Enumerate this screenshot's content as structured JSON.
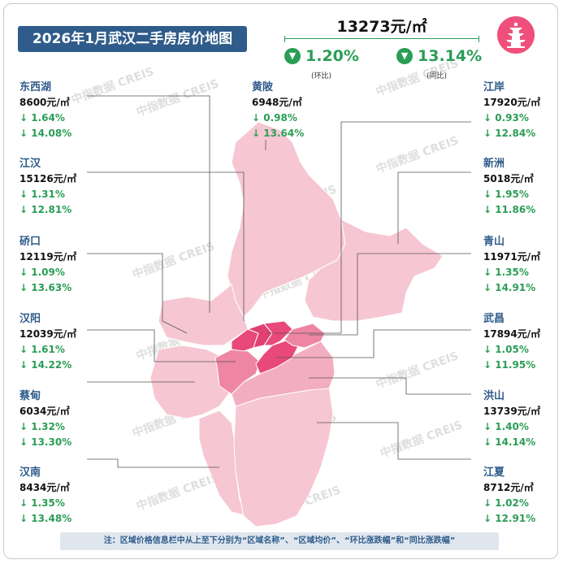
{
  "title": "2026年1月武汉二手房房价地图",
  "city_avg": "13273元/㎡",
  "mom": {
    "value": "1.20%",
    "label": "(环比)"
  },
  "yoy": {
    "value": "13.14%",
    "label": "(同比)"
  },
  "watermark": "中指数据 CREIS",
  "regions": [
    {
      "name": "东西湖",
      "price": "8600元/㎡",
      "mom": "↓ 1.64%",
      "yoy": "↓ 14.08%"
    },
    {
      "name": "江汉",
      "price": "15126元/㎡",
      "mom": "↓ 1.31%",
      "yoy": "↓ 12.81%"
    },
    {
      "name": "硚口",
      "price": "12119元/㎡",
      "mom": "↓ 1.09%",
      "yoy": "↓ 13.63%"
    },
    {
      "name": "汉阳",
      "price": "12039元/㎡",
      "mom": "↓ 1.61%",
      "yoy": "↓ 14.22%"
    },
    {
      "name": "蔡甸",
      "price": "6034元/㎡",
      "mom": "↓ 1.32%",
      "yoy": "↓ 13.30%"
    },
    {
      "name": "汉南",
      "price": "8434元/㎡",
      "mom": "↓ 1.35%",
      "yoy": "↓ 13.48%"
    },
    {
      "name": "黄陂",
      "price": "6948元/㎡",
      "mom": "↓ 0.98%",
      "yoy": "↓ 13.64%"
    },
    {
      "name": "江岸",
      "price": "17920元/㎡",
      "mom": "↓ 0.93%",
      "yoy": "↓ 12.84%"
    },
    {
      "name": "新洲",
      "price": "5018元/㎡",
      "mom": "↓ 1.95%",
      "yoy": "↓ 11.86%"
    },
    {
      "name": "青山",
      "price": "11971元/㎡",
      "mom": "↓ 1.35%",
      "yoy": "↓ 14.91%"
    },
    {
      "name": "武昌",
      "price": "17894元/㎡",
      "mom": "↓ 1.05%",
      "yoy": "↓ 11.95%"
    },
    {
      "name": "洪山",
      "price": "13739元/㎡",
      "mom": "↓ 1.40%",
      "yoy": "↓ 14.14%"
    },
    {
      "name": "江夏",
      "price": "8712元/㎡",
      "mom": "↓ 1.02%",
      "yoy": "↓ 12.91%"
    }
  ],
  "note": "注：区域价格信息栏中从上至下分别为“区域名称”、“区域均价”、“环比涨跌幅”和“同比涨跌幅”",
  "colors": {
    "accent": "#2f5c8a",
    "down": "#2a9d55",
    "map_light": "#f6c6d3",
    "map_dark": "#e8487a"
  }
}
